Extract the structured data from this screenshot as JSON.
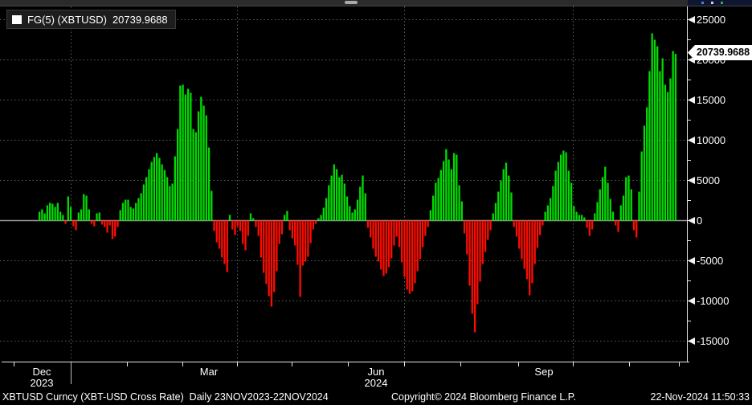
{
  "legend": {
    "swatch_color": "#ffffff",
    "label": "FG(5) (XBTUSD)",
    "value": "20739.9688"
  },
  "last_value_badge": {
    "value": "20739.9688"
  },
  "y_axis": {
    "labeled_ticks": [
      25000,
      20000,
      15000,
      10000,
      5000,
      0,
      -5000,
      -10000,
      -15000
    ],
    "minor_step": 2500
  },
  "x_axis": {
    "labels": [
      {
        "text": "Dec",
        "year": "2023",
        "x": 52
      },
      {
        "text": "Mar",
        "year": "",
        "x": 260
      },
      {
        "text": "Jun",
        "year": "2024",
        "x": 468
      },
      {
        "text": "Sep",
        "year": "",
        "x": 677
      }
    ],
    "month_tick_x": [
      17,
      88,
      158,
      227,
      295,
      363,
      433,
      503,
      573,
      645,
      713,
      783,
      845
    ],
    "year_separator_x": 88
  },
  "footer": {
    "left": "XBTUSD Curncy (XBT-USD Cross Rate)  Daily 23NOV2023-22NOV2024",
    "center": "Copyright© 2024 Bloomberg Finance L.P.",
    "right": "22-Nov-2024 11:50:33"
  },
  "chart_data": {
    "type": "bar",
    "title": "FG(5) study on XBTUSD Curncy, daily",
    "x_range": [
      "23NOV2023",
      "22NOV2024"
    ],
    "ylim": [
      -17600,
      26600
    ],
    "y_gridline_step": 5000,
    "quarter_gridlines_x": [
      88,
      295,
      503,
      713
    ],
    "legend_position": "top-left",
    "grid": true,
    "colors": {
      "positive": "#00dc00",
      "negative": "#ff0c00",
      "grid": "#5f5f5f",
      "zero_line": "#9a9a9a",
      "axis": "#e6e6e6",
      "text": "#ffffff",
      "background": "#000000"
    },
    "last_value": 20739.9688,
    "values": [
      1100,
      1400,
      900,
      1900,
      2200,
      2100,
      1700,
      2200,
      1100,
      700,
      -400,
      3000,
      1700,
      -700,
      -1200,
      1000,
      1400,
      3300,
      3100,
      1400,
      -400,
      -700,
      900,
      1000,
      -500,
      -800,
      -1500,
      -600,
      -2300,
      -2000,
      -800,
      1300,
      2200,
      2600,
      2600,
      1700,
      1500,
      2200,
      2800,
      3400,
      4500,
      5400,
      6400,
      7300,
      7900,
      8400,
      7800,
      7000,
      6300,
      5400,
      4300,
      4600,
      8000,
      11400,
      16800,
      16900,
      15700,
      16400,
      15900,
      11400,
      11000,
      13600,
      15400,
      14300,
      13100,
      9100,
      3700,
      -1300,
      -2700,
      -3500,
      -4600,
      -5400,
      -6400,
      700,
      -1100,
      -1800,
      -700,
      -1300,
      -2900,
      -3700,
      -1900,
      900,
      300,
      -800,
      -1900,
      -4600,
      -6500,
      -7900,
      -9400,
      -10700,
      -8900,
      -6300,
      -2900,
      -1700,
      700,
      1200,
      -1200,
      -2200,
      -3100,
      -5500,
      -9500,
      -5600,
      -5100,
      -4500,
      -2800,
      -1100,
      -400,
      300,
      700,
      1600,
      2800,
      4400,
      5600,
      7000,
      6400,
      5400,
      5700,
      4600,
      3000,
      1800,
      1000,
      1400,
      2600,
      4200,
      5600,
      3400,
      -900,
      -2100,
      -3500,
      -4500,
      -5100,
      -6100,
      -6900,
      -6600,
      -5800,
      -4700,
      -3100,
      -2000,
      -3300,
      -5200,
      -7000,
      -8600,
      -9100,
      -8800,
      -7800,
      -6300,
      -4800,
      -3300,
      -1900,
      -800,
      1300,
      3100,
      4700,
      5300,
      6300,
      7400,
      8900,
      7600,
      6400,
      8400,
      8200,
      4400,
      2400,
      -1600,
      -4200,
      -8100,
      -11600,
      -13900,
      -10400,
      -7600,
      -5400,
      -3900,
      -2400,
      -1200,
      900,
      2200,
      3600,
      5000,
      6400,
      7200,
      5600,
      3500,
      -800,
      -2000,
      -3500,
      -4800,
      -6000,
      -7300,
      -9300,
      -7800,
      -5400,
      -3400,
      -1800,
      -600,
      1100,
      1900,
      2800,
      4300,
      6200,
      7300,
      8200,
      8700,
      8500,
      6200,
      4700,
      1800,
      1100,
      700,
      700,
      400,
      -900,
      -1900,
      -1100,
      900,
      2300,
      3900,
      5400,
      6700,
      4700,
      2700,
      1100,
      -600,
      -1400,
      1900,
      3100,
      5400,
      5600,
      3900,
      -1200,
      -2100,
      3600,
      8600,
      11800,
      14100,
      18600,
      23300,
      22500,
      21700,
      18600,
      20200,
      16900,
      16000,
      17700,
      21100,
      20739.9688
    ]
  }
}
